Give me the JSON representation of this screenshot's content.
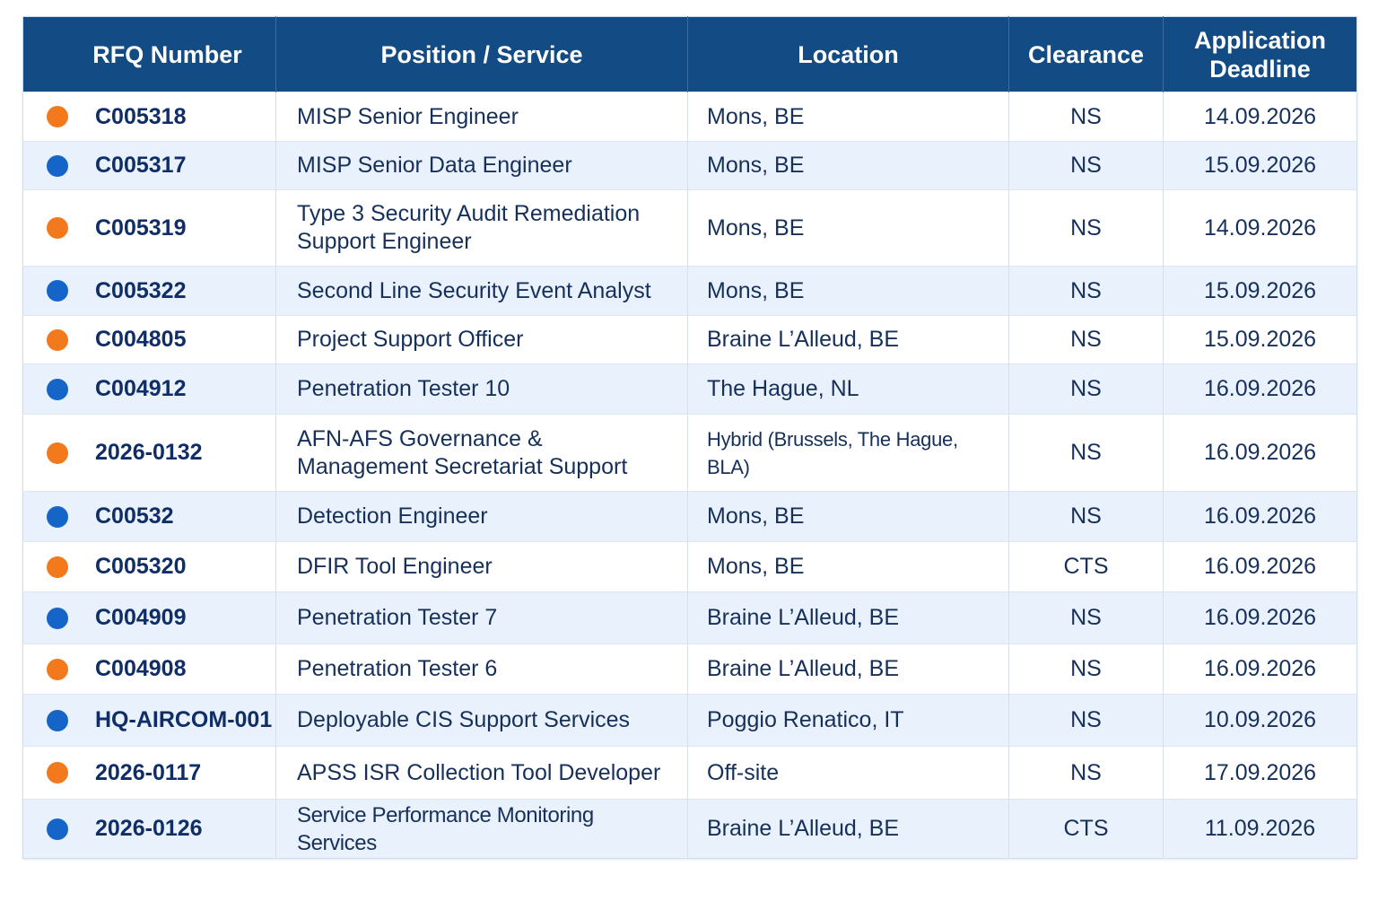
{
  "table": {
    "headers": {
      "rfq": "RFQ Number",
      "position": "Position / Service",
      "location": "Location",
      "clearance": "Clearance",
      "deadline_line1": "Application",
      "deadline_line2": "Deadline"
    },
    "status_colors": {
      "orange": "#f27a1d",
      "blue": "#1565c8"
    },
    "rows": [
      {
        "status": "orange",
        "rfq": "C005318",
        "position": "MISP Senior Engineer",
        "location": "Mons, BE",
        "clearance": "NS",
        "deadline": "14.09.2026"
      },
      {
        "status": "blue",
        "rfq": "C005317",
        "position": "MISP Senior Data Engineer",
        "location": "Mons, BE",
        "clearance": "NS",
        "deadline": "15.09.2026"
      },
      {
        "status": "orange",
        "rfq": "C005319",
        "position": "Type 3 Security Audit Remediation Support Engineer",
        "location": "Mons, BE",
        "clearance": "NS",
        "deadline": "14.09.2026"
      },
      {
        "status": "blue",
        "rfq": "C005322",
        "position": "Second Line Security Event Analyst",
        "location": "Mons, BE",
        "clearance": "NS",
        "deadline": "15.09.2026"
      },
      {
        "status": "orange",
        "rfq": "C004805",
        "position": "Project Support Officer",
        "location": "Braine L’Alleud, BE",
        "clearance": "NS",
        "deadline": "15.09.2026"
      },
      {
        "status": "blue",
        "rfq": "C004912",
        "position": "Penetration Tester 10",
        "location": "The Hague, NL",
        "clearance": "NS",
        "deadline": "16.09.2026"
      },
      {
        "status": "orange",
        "rfq": "2026-0132",
        "position": "AFN-AFS Governance & Management Secretariat Support",
        "location": "Hybrid (Brussels, The Hague, BLA)",
        "clearance": "NS",
        "deadline": "16.09.2026"
      },
      {
        "status": "blue",
        "rfq": "C00532",
        "position": "Detection Engineer",
        "location": "Mons, BE",
        "clearance": "NS",
        "deadline": "16.09.2026"
      },
      {
        "status": "orange",
        "rfq": "C005320",
        "position": "DFIR Tool Engineer",
        "location": "Mons, BE",
        "clearance": "CTS",
        "deadline": "16.09.2026"
      },
      {
        "status": "blue",
        "rfq": "C004909",
        "position": "Penetration Tester 7",
        "location": "Braine L’Alleud, BE",
        "clearance": "NS",
        "deadline": "16.09.2026"
      },
      {
        "status": "orange",
        "rfq": "C004908",
        "position": "Penetration Tester 6",
        "location": "Braine L’Alleud, BE",
        "clearance": "NS",
        "deadline": "16.09.2026"
      },
      {
        "status": "blue",
        "rfq": "HQ-AIRCOM-001",
        "position": "Deployable CIS Support Services",
        "location": "Poggio Renatico, IT",
        "clearance": "NS",
        "deadline": "10.09.2026"
      },
      {
        "status": "orange",
        "rfq": "2026-0117",
        "position": "APSS ISR Collection Tool Developer",
        "location": "Off-site",
        "clearance": "NS",
        "deadline": "17.09.2026"
      },
      {
        "status": "blue",
        "rfq": "2026-0126",
        "position": "Service Performance Monitoring Services",
        "location": "Braine L’Alleud, BE",
        "clearance": "CTS",
        "deadline": "11.09.2026"
      }
    ]
  }
}
